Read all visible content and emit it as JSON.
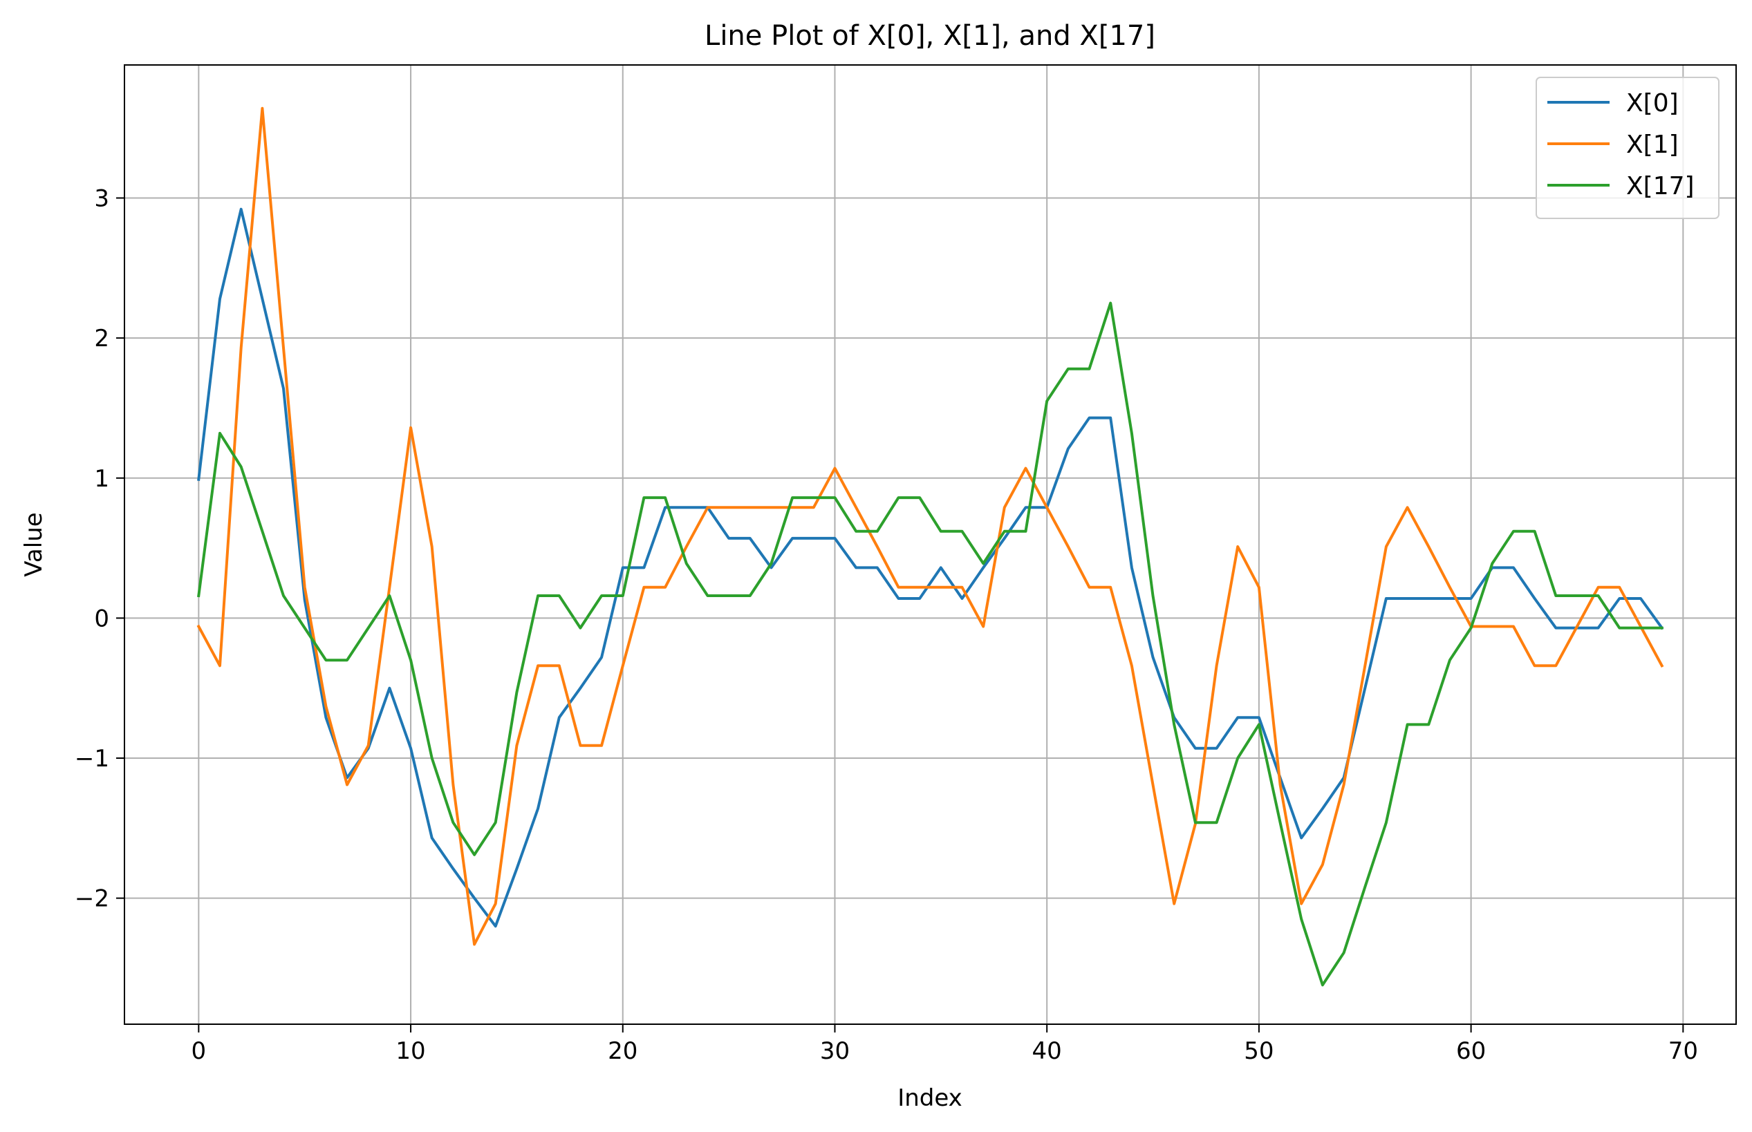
{
  "chart_data": {
    "type": "line",
    "title": "Line Plot of X[0], X[1], and X[17]",
    "xlabel": "Index",
    "ylabel": "Value",
    "xlim": [
      -3.5,
      72.5
    ],
    "ylim": [
      -2.9,
      3.95
    ],
    "xticks": [
      0,
      10,
      20,
      30,
      40,
      50,
      60,
      70
    ],
    "xtick_labels": [
      "0",
      "10",
      "20",
      "30",
      "40",
      "50",
      "60",
      "70"
    ],
    "yticks": [
      -2,
      -1,
      0,
      1,
      2,
      3
    ],
    "ytick_labels": [
      "−2",
      "−1",
      "0",
      "1",
      "2",
      "3"
    ],
    "grid": true,
    "legend_position": "top-right",
    "x": [
      0,
      1,
      2,
      3,
      4,
      5,
      6,
      7,
      8,
      9,
      10,
      11,
      12,
      13,
      14,
      15,
      16,
      17,
      18,
      19,
      20,
      21,
      22,
      23,
      24,
      25,
      26,
      27,
      28,
      29,
      30,
      31,
      32,
      33,
      34,
      35,
      36,
      37,
      38,
      39,
      40,
      41,
      42,
      43,
      44,
      45,
      46,
      47,
      48,
      49,
      50,
      51,
      52,
      53,
      54,
      55,
      56,
      57,
      58,
      59,
      60,
      61,
      62,
      63,
      64,
      65,
      66,
      67,
      68,
      69
    ],
    "series": [
      {
        "name": "X[0]",
        "color": "#1f77b4",
        "values": [
          0.99,
          2.28,
          2.92,
          2.28,
          1.64,
          0.13,
          -0.71,
          -1.14,
          -0.93,
          -0.5,
          -0.93,
          -1.57,
          -1.79,
          -2.0,
          -2.2,
          -1.79,
          -1.36,
          -0.71,
          -0.5,
          -0.28,
          0.36,
          0.36,
          0.79,
          0.79,
          0.79,
          0.57,
          0.57,
          0.36,
          0.57,
          0.57,
          0.57,
          0.36,
          0.36,
          0.14,
          0.14,
          0.36,
          0.14,
          0.36,
          0.57,
          0.79,
          0.79,
          1.21,
          1.43,
          1.43,
          0.36,
          -0.28,
          -0.71,
          -0.93,
          -0.93,
          -0.71,
          -0.71,
          -1.14,
          -1.57,
          -1.36,
          -1.14,
          -0.5,
          0.14,
          0.14,
          0.14,
          0.14,
          0.14,
          0.36,
          0.36,
          0.14,
          -0.07,
          -0.07,
          -0.07,
          0.14,
          0.14,
          -0.07
        ]
      },
      {
        "name": "X[1]",
        "color": "#ff7f0e",
        "values": [
          -0.06,
          -0.34,
          1.93,
          3.64,
          1.93,
          0.22,
          -0.63,
          -1.19,
          -0.91,
          0.22,
          1.36,
          0.51,
          -1.19,
          -2.33,
          -2.04,
          -0.91,
          -0.34,
          -0.34,
          -0.91,
          -0.91,
          -0.34,
          0.22,
          0.22,
          0.51,
          0.79,
          0.79,
          0.79,
          0.79,
          0.79,
          0.79,
          1.07,
          0.79,
          0.51,
          0.22,
          0.22,
          0.22,
          0.22,
          -0.06,
          0.79,
          1.07,
          0.79,
          0.51,
          0.22,
          0.22,
          -0.34,
          -1.19,
          -2.04,
          -1.47,
          -0.34,
          0.51,
          0.22,
          -1.19,
          -2.04,
          -1.76,
          -1.19,
          -0.34,
          0.51,
          0.79,
          0.51,
          0.22,
          -0.06,
          -0.06,
          -0.06,
          -0.34,
          -0.34,
          -0.06,
          0.22,
          0.22,
          -0.06,
          -0.34
        ]
      },
      {
        "name": "X[17]",
        "color": "#2ca02c",
        "values": [
          0.16,
          1.32,
          1.08,
          0.62,
          0.16,
          -0.07,
          -0.3,
          -0.3,
          -0.07,
          0.16,
          -0.3,
          -1.0,
          -1.46,
          -1.69,
          -1.46,
          -0.53,
          0.16,
          0.16,
          -0.07,
          0.16,
          0.16,
          0.86,
          0.86,
          0.39,
          0.16,
          0.16,
          0.16,
          0.39,
          0.86,
          0.86,
          0.86,
          0.62,
          0.62,
          0.86,
          0.86,
          0.62,
          0.62,
          0.39,
          0.62,
          0.62,
          1.55,
          1.78,
          1.78,
          2.25,
          1.32,
          0.16,
          -0.76,
          -1.46,
          -1.46,
          -1.0,
          -0.76,
          -1.46,
          -2.15,
          -2.62,
          -2.39,
          -1.92,
          -1.46,
          -0.76,
          -0.76,
          -0.3,
          -0.07,
          0.39,
          0.62,
          0.62,
          0.16,
          0.16,
          0.16,
          -0.07,
          -0.07,
          -0.07
        ]
      }
    ]
  }
}
